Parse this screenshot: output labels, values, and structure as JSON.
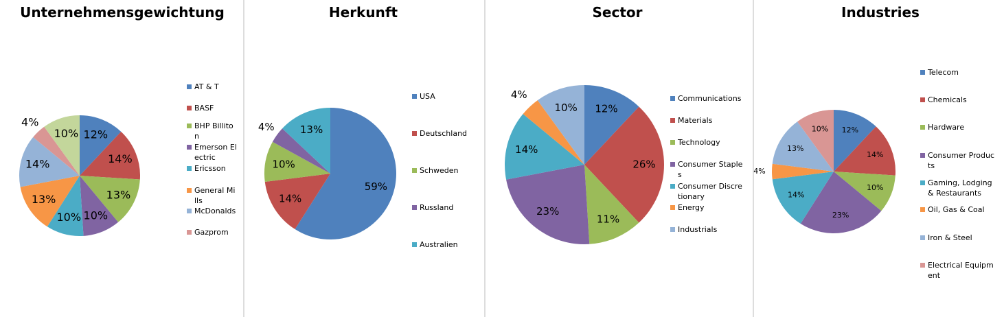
{
  "chart_data": [
    {
      "type": "pie",
      "title": "Unternehmensgewichtung",
      "categories": [
        "AT & T",
        "BASF",
        "BHP Billiton",
        "Emerson Electric",
        "Ericsson",
        "General Mills",
        "McDonalds",
        "Gazprom",
        null
      ],
      "values": [
        12,
        14,
        13,
        10,
        10,
        13,
        14,
        4,
        10
      ],
      "value_labels": [
        "12%",
        "14%",
        "13%",
        "10%",
        "10%",
        "13%",
        "14%",
        "4%",
        "10%"
      ],
      "colors": [
        "#4F81BD",
        "#C0504D",
        "#9BBB59",
        "#8064A2",
        "#4BACC6",
        "#F79646",
        "#95B3D7",
        "#D99694",
        "#C3D69B"
      ]
    },
    {
      "type": "pie",
      "title": "Herkunft",
      "categories": [
        "USA",
        "Deutschland",
        "Schweden",
        "Russland",
        "Australien"
      ],
      "values": [
        59,
        14,
        10,
        4,
        13
      ],
      "value_labels": [
        "59%",
        "14%",
        "10%",
        "4%",
        "13%"
      ],
      "colors": [
        "#4F81BD",
        "#C0504D",
        "#9BBB59",
        "#8064A2",
        "#4BACC6"
      ]
    },
    {
      "type": "pie",
      "title": "Sector",
      "categories": [
        "Communications",
        "Materials",
        "Technology",
        "Consumer Staples",
        "Consumer Discretionary",
        "Energy",
        "Industrials"
      ],
      "values": [
        12,
        26,
        11,
        23,
        14,
        4,
        10
      ],
      "value_labels": [
        "12%",
        "26%",
        "11%",
        "23%",
        "14%",
        "4%",
        "10%"
      ],
      "colors": [
        "#4F81BD",
        "#C0504D",
        "#9BBB59",
        "#8064A2",
        "#4BACC6",
        "#F79646",
        "#95B3D7"
      ]
    },
    {
      "type": "pie",
      "title": "Industries",
      "categories": [
        "Telecom",
        "Chemicals",
        "Hardware",
        "Consumer Products",
        "Gaming, Lodging & Restaurants",
        "Oil, Gas & Coal",
        "Iron & Steel",
        "Electrical Equipment"
      ],
      "values": [
        12,
        14,
        10,
        23,
        14,
        4,
        13,
        10
      ],
      "value_labels": [
        "12%",
        "14%",
        "10%",
        "23%",
        "14%",
        "4%",
        "13%",
        "10%"
      ],
      "colors": [
        "#4F81BD",
        "#C0504D",
        "#9BBB59",
        "#8064A2",
        "#4BACC6",
        "#F79646",
        "#95B3D7",
        "#D99694"
      ]
    }
  ]
}
